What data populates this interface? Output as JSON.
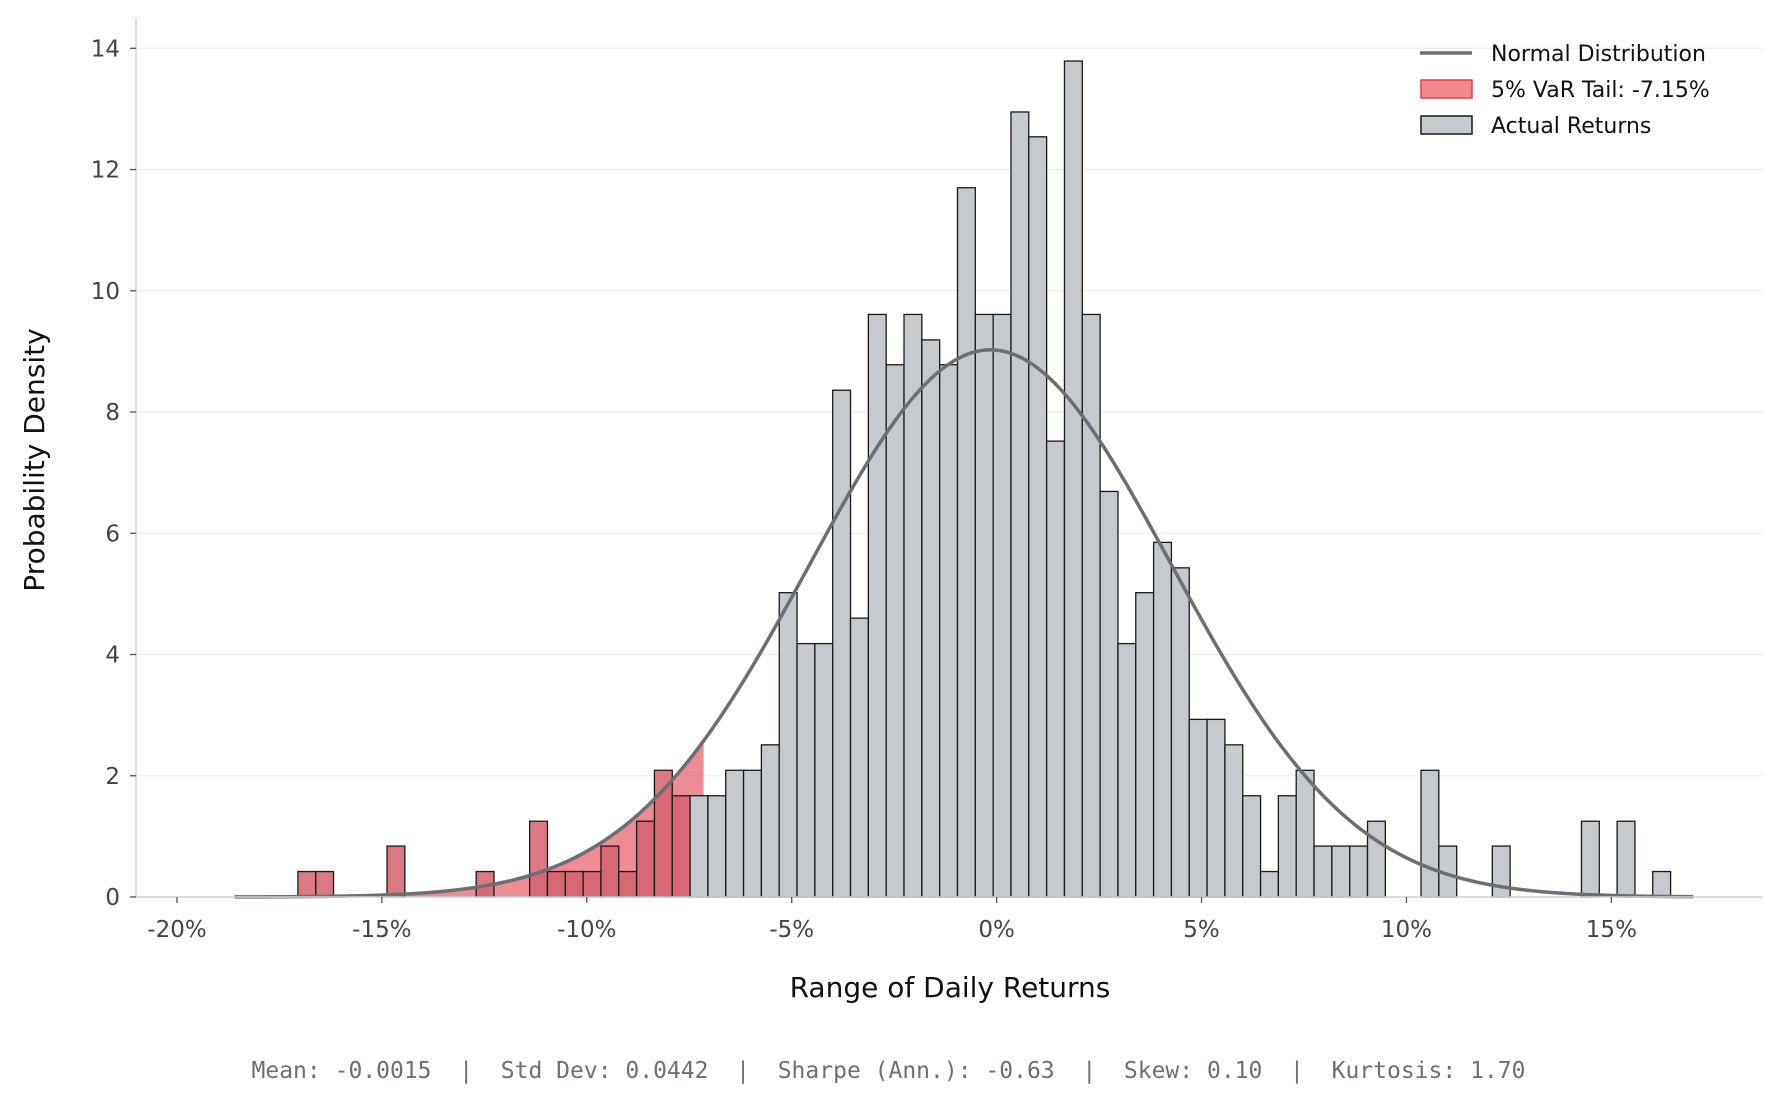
{
  "chart_data": {
    "type": "bar",
    "title": "",
    "xlabel": "Range of Daily Returns",
    "ylabel": "Probability Density",
    "xlim": [
      -0.21,
      0.187
    ],
    "ylim": [
      0,
      14.5
    ],
    "x_ticks": [
      -0.2,
      -0.15,
      -0.1,
      -0.05,
      0.0,
      0.05,
      0.1,
      0.15
    ],
    "x_tick_labels": [
      "-20%",
      "-15%",
      "-10%",
      "-5%",
      "0%",
      "5%",
      "10%",
      "15%"
    ],
    "y_ticks": [
      0,
      2,
      4,
      6,
      8,
      10,
      12,
      14
    ],
    "y_tick_labels": [
      "0",
      "2",
      "4",
      "6",
      "8",
      "10",
      "12",
      "14"
    ],
    "grid": "horizontal",
    "legend_position": "top-right",
    "histogram": {
      "name": "Actual Returns",
      "bin_start": -0.1705,
      "bin_width": 0.00435,
      "densities": [
        0.42,
        0.42,
        0,
        0,
        0,
        0.84,
        0,
        0,
        0,
        0,
        0.42,
        0,
        0,
        1.25,
        0.42,
        0.42,
        0.42,
        0.84,
        0.42,
        1.25,
        2.09,
        1.67,
        1.67,
        1.67,
        2.09,
        2.09,
        2.51,
        5.02,
        4.18,
        4.18,
        8.36,
        4.6,
        9.61,
        8.78,
        9.61,
        9.19,
        8.78,
        11.7,
        9.61,
        9.61,
        12.95,
        12.54,
        7.52,
        13.79,
        9.61,
        6.69,
        4.18,
        5.02,
        5.85,
        5.43,
        2.93,
        2.93,
        2.51,
        1.67,
        0.42,
        1.67,
        2.09,
        0.84,
        0.84,
        0.84,
        1.25,
        0,
        0,
        2.09,
        0.84,
        0,
        0,
        0.84,
        0,
        0,
        0,
        0,
        1.25,
        0,
        1.25,
        0,
        0.42
      ],
      "fill_color": "#c6c9ce",
      "edge_color": "#1a1a1a"
    },
    "var_tail": {
      "name": "5% VaR Tail: -7.15%",
      "threshold": -0.0715,
      "highlight_color": "#e0404f"
    },
    "normal_curve": {
      "name": "Normal Distribution",
      "mean": -0.0015,
      "std": 0.0442,
      "x_range": [
        -0.186,
        0.17
      ],
      "color": "#6b6e73"
    },
    "stats_text": "Mean: -0.0015  |  Std Dev: 0.0442  |  Sharpe (Ann.): -0.63  |  Skew: 0.10  |  Kurtosis: 1.70"
  }
}
